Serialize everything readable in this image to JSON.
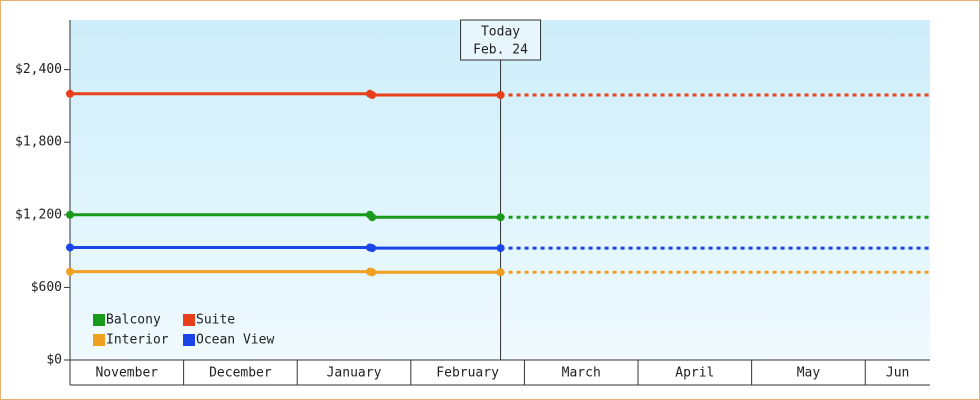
{
  "chart_data": {
    "type": "line",
    "categories": [
      "November",
      "December",
      "January",
      "February",
      "March",
      "April",
      "May",
      "Jun"
    ],
    "x": [
      0,
      2.64,
      2.66,
      3.79
    ],
    "xlim": [
      0,
      7.57
    ],
    "ylim": [
      0,
      2810
    ],
    "yticks": [
      {
        "value": 0,
        "label": "$0"
      },
      {
        "value": 600,
        "label": "$600"
      },
      {
        "value": 1200,
        "label": "$1,200"
      },
      {
        "value": 1800,
        "label": "$1,800"
      },
      {
        "value": 2400,
        "label": "$2,400"
      }
    ],
    "annotation": {
      "x": 3.79,
      "lines": [
        "Today",
        "Feb. 24"
      ]
    },
    "legend": "lower left",
    "series": [
      {
        "name": "Balcony",
        "color": "#1a9a1a",
        "values": [
          1200,
          1200,
          1180,
          1180
        ]
      },
      {
        "name": "Suite",
        "color": "#e8401a",
        "values": [
          2200,
          2200,
          2190,
          2190
        ]
      },
      {
        "name": "Interior",
        "color": "#f0a020",
        "values": [
          730,
          730,
          725,
          725
        ]
      },
      {
        "name": "Ocean View",
        "color": "#1a44e8",
        "values": [
          930,
          930,
          925,
          925
        ]
      }
    ]
  }
}
